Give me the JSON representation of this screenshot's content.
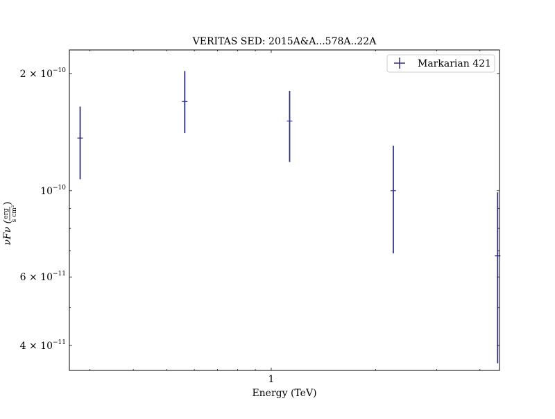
{
  "chart_data": {
    "type": "scatter",
    "title": "VERITAS SED: 2015A&A...578A..22A",
    "xlabel": "Energy (TeV)",
    "ylabel_main": "νFν (",
    "ylabel_unit_num": "erg",
    "ylabel_unit_den": "s cm²",
    "ylabel_close": ")",
    "xscale": "log",
    "yscale": "log",
    "xlim": [
      0.2616,
      4.556
    ],
    "ylim": [
      3.45e-11,
      2.3e-10
    ],
    "x_major_ticks": [
      {
        "value": 1,
        "label": "1"
      }
    ],
    "x_minor_ticks": [
      0.3,
      0.4,
      0.5,
      0.6,
      0.7,
      0.8,
      0.9,
      2,
      3,
      4
    ],
    "y_major_ticks": [
      {
        "value": 2e-10,
        "mant": "2",
        "exp": "−10",
        "prefix": "2 × 10"
      },
      {
        "value": 1e-10,
        "mant": "",
        "exp": "−10",
        "prefix": "10"
      },
      {
        "value": 6e-11,
        "mant": "6",
        "exp": "−11",
        "prefix": "6 × 10"
      },
      {
        "value": 4e-11,
        "mant": "4",
        "exp": "−11",
        "prefix": "4 × 10"
      }
    ],
    "y_minor_ticks": [
      9e-11,
      8e-11,
      7e-11,
      5e-11
    ],
    "grid": false,
    "legend_position": "upper-right",
    "series": [
      {
        "name": "Markarian 421",
        "color": "#2b2f7e",
        "points": [
          {
            "x": 0.281,
            "y": 1.365e-10,
            "ylo": 1.07e-10,
            "yhi": 1.645e-10
          },
          {
            "x": 0.563,
            "y": 1.695e-10,
            "ylo": 1.405e-10,
            "yhi": 2.03e-10
          },
          {
            "x": 1.13,
            "y": 1.51e-10,
            "ylo": 1.185e-10,
            "yhi": 1.805e-10
          },
          {
            "x": 2.25,
            "y": 1e-10,
            "ylo": 6.9e-11,
            "yhi": 1.305e-10
          },
          {
            "x": 4.5,
            "y": 6.8e-11,
            "ylo": 3.6e-11,
            "yhi": 9.9e-11
          }
        ]
      }
    ]
  }
}
